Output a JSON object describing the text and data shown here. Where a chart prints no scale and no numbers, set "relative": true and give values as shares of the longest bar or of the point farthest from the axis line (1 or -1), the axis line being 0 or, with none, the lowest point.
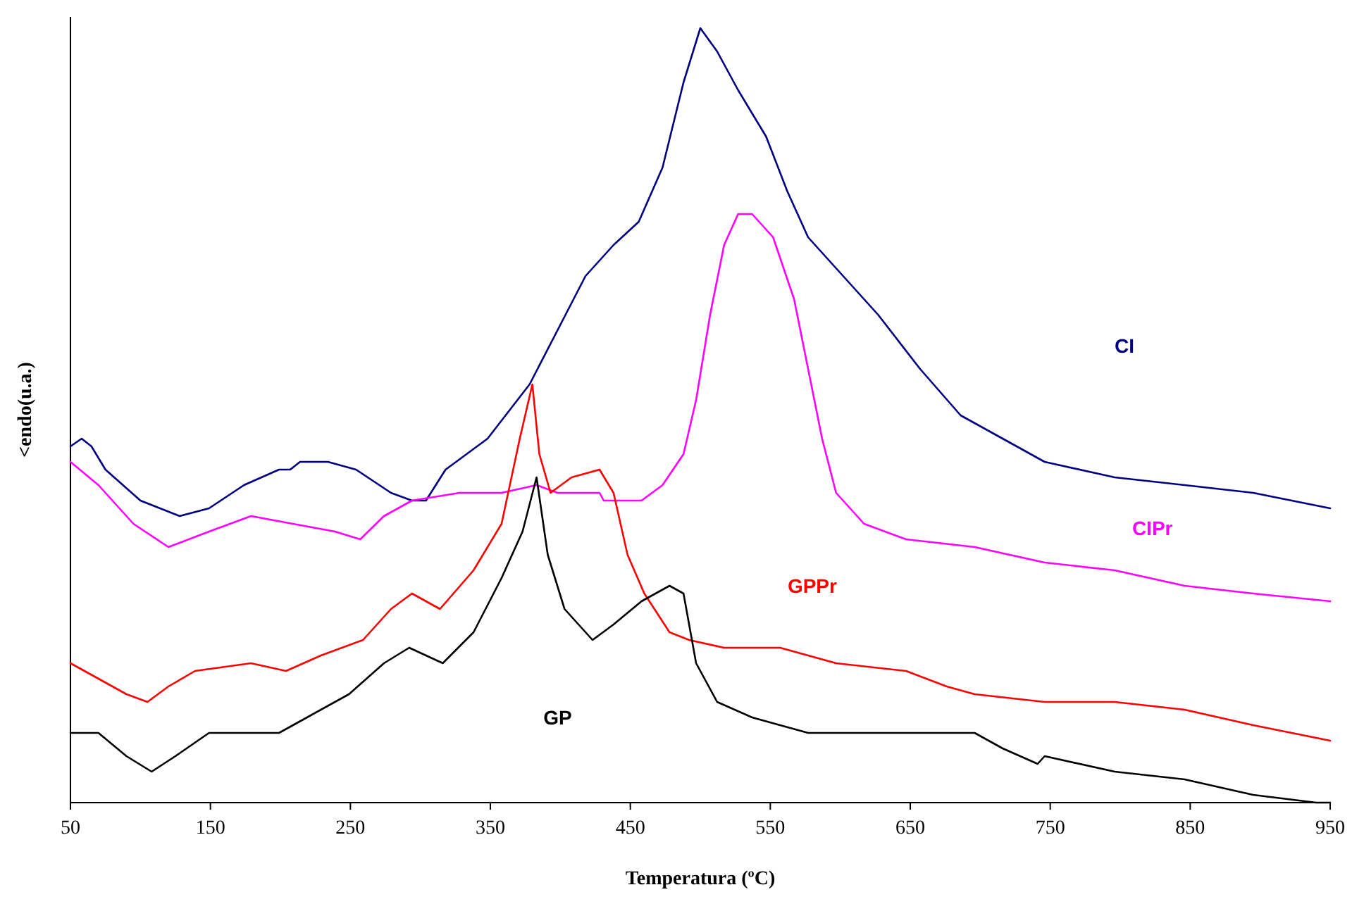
{
  "chart_data": {
    "type": "line",
    "relative": true,
    "xlabel": "Temperatura (ºC)",
    "ylabel": "<endo(u.a.)",
    "xlim": [
      50,
      950
    ],
    "xticks": [
      50,
      150,
      250,
      350,
      450,
      550,
      650,
      750,
      850,
      950
    ],
    "grid": false,
    "marker": "none",
    "line_style": "solid",
    "series": [
      {
        "name": "CI",
        "color": "#000080",
        "x": [
          50,
          58,
          65,
          75,
          100,
          128,
          149,
          174,
          199,
          207,
          214,
          234,
          254,
          279,
          294,
          304,
          318,
          348,
          378,
          398,
          418,
          438,
          456,
          473,
          488,
          500,
          512,
          527,
          547,
          562,
          577,
          597,
          627,
          657,
          686,
          716,
          746,
          796,
          846,
          895,
          950
        ],
        "values": [
          0.46,
          0.47,
          0.46,
          0.43,
          0.39,
          0.37,
          0.38,
          0.41,
          0.43,
          0.43,
          0.44,
          0.44,
          0.43,
          0.4,
          0.39,
          0.39,
          0.43,
          0.47,
          0.54,
          0.61,
          0.68,
          0.72,
          0.75,
          0.82,
          0.93,
          1,
          0.97,
          0.92,
          0.86,
          0.79,
          0.73,
          0.69,
          0.63,
          0.56,
          0.5,
          0.47,
          0.44,
          0.42,
          0.41,
          0.4,
          0.38
        ]
      },
      {
        "name": "CIPr",
        "color": "#ff00ff",
        "x": [
          50,
          70,
          95,
          120,
          149,
          179,
          209,
          239,
          257,
          274,
          294,
          328,
          358,
          383,
          398,
          418,
          428,
          431,
          443,
          458,
          473,
          488,
          497,
          507,
          517,
          527,
          537,
          552,
          567,
          577,
          587,
          597,
          617,
          647,
          696,
          746,
          796,
          846,
          895,
          950
        ],
        "values": [
          0.44,
          0.41,
          0.36,
          0.33,
          0.35,
          0.37,
          0.36,
          0.35,
          0.34,
          0.37,
          0.39,
          0.4,
          0.4,
          0.41,
          0.4,
          0.4,
          0.4,
          0.39,
          0.39,
          0.39,
          0.41,
          0.45,
          0.52,
          0.63,
          0.72,
          0.76,
          0.76,
          0.73,
          0.65,
          0.56,
          0.47,
          0.4,
          0.36,
          0.34,
          0.33,
          0.31,
          0.3,
          0.28,
          0.27,
          0.26
        ]
      },
      {
        "name": "GPPr",
        "color": "#ff0000",
        "x": [
          50,
          70,
          90,
          105,
          120,
          139,
          179,
          204,
          229,
          259,
          279,
          294,
          314,
          338,
          358,
          371,
          380,
          385,
          393,
          408,
          428,
          438,
          448,
          460,
          478,
          492,
          517,
          557,
          597,
          647,
          676,
          696,
          746,
          796,
          846,
          895,
          950
        ],
        "values": [
          0.18,
          0.16,
          0.14,
          0.13,
          0.15,
          0.17,
          0.18,
          0.17,
          0.19,
          0.21,
          0.25,
          0.27,
          0.25,
          0.3,
          0.36,
          0.47,
          0.54,
          0.45,
          0.4,
          0.42,
          0.43,
          0.4,
          0.32,
          0.27,
          0.22,
          0.21,
          0.2,
          0.2,
          0.18,
          0.17,
          0.15,
          0.14,
          0.13,
          0.13,
          0.12,
          0.1,
          0.08
        ]
      },
      {
        "name": "GP",
        "color": "#000000",
        "x": [
          50,
          70,
          90,
          108,
          125,
          149,
          199,
          219,
          249,
          274,
          292,
          316,
          338,
          358,
          373,
          383,
          391,
          403,
          423,
          438,
          458,
          478,
          488,
          497,
          512,
          537,
          577,
          637,
          696,
          716,
          741,
          746,
          796,
          846,
          895,
          940,
          950
        ],
        "values": [
          0.09,
          0.09,
          0.06,
          0.04,
          0.06,
          0.09,
          0.09,
          0.11,
          0.14,
          0.18,
          0.2,
          0.18,
          0.22,
          0.29,
          0.35,
          0.42,
          0.32,
          0.25,
          0.21,
          0.23,
          0.26,
          0.28,
          0.27,
          0.18,
          0.13,
          0.11,
          0.09,
          0.09,
          0.09,
          0.07,
          0.05,
          0.06,
          0.04,
          0.03,
          0.01,
          0,
          0
        ]
      }
    ]
  }
}
